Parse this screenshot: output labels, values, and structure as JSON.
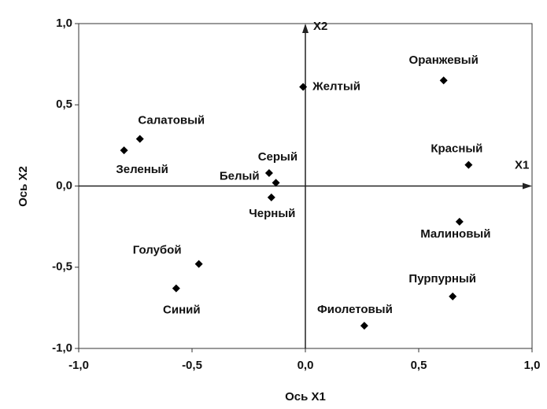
{
  "chart_data": {
    "type": "scatter",
    "xlabel": "Ось X1",
    "ylabel": "Ось X2",
    "axis_names": [
      "X1",
      "X2"
    ],
    "labels": [
      "Оранжевый",
      "Желтый",
      "Салатовый",
      "Зеленый",
      "Серый",
      "Белый",
      "Черный",
      "Красный",
      "Малиновый",
      "Голубой",
      "Синий",
      "Пурпурный",
      "Фиолетовый"
    ],
    "x": [
      0.61,
      -0.01,
      -0.73,
      -0.8,
      -0.16,
      -0.13,
      -0.15,
      0.72,
      0.68,
      -0.47,
      -0.57,
      0.65,
      0.26
    ],
    "values": [
      0.65,
      0.61,
      0.29,
      0.22,
      0.08,
      0.02,
      -0.07,
      0.13,
      -0.22,
      -0.48,
      -0.63,
      -0.68,
      -0.86
    ],
    "color": "#000000",
    "xlim": [
      -1.0,
      1.0
    ],
    "ylim": [
      -1.0,
      1.0
    ],
    "xticks": [
      {
        "value": -1.0,
        "label": "-1,0"
      },
      {
        "value": -0.5,
        "label": "-0,5"
      },
      {
        "value": 0.0,
        "label": "0,0"
      },
      {
        "value": 0.5,
        "label": "0,5"
      },
      {
        "value": 1.0,
        "label": "1,0"
      }
    ],
    "yticks": [
      {
        "value": -1.0,
        "label": "-1,0"
      },
      {
        "value": -0.5,
        "label": "-0,5"
      },
      {
        "value": 0.0,
        "label": "0,0"
      },
      {
        "value": 0.5,
        "label": "0,5"
      },
      {
        "value": 1.0,
        "label": "1,0"
      }
    ]
  }
}
